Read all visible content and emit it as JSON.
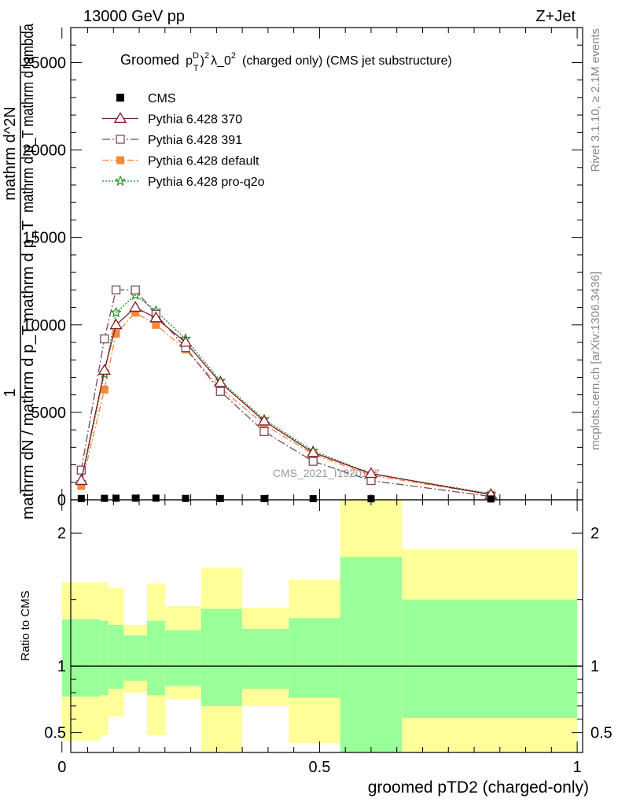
{
  "header": {
    "left": "13000 GeV pp",
    "right": "Z+Jet"
  },
  "side_labels": {
    "rivet": "Rivet 3.1.10, ≥ 2.1M events",
    "mcplots": "mcplots.cern.ch [arXiv:1306.3436]"
  },
  "watermark": "CMS_2021_I1920187",
  "colors": {
    "cms": "#000000",
    "p370": "#7b1a2a",
    "p391": "#7a4a5c",
    "pdefault": "#f5883a",
    "pq2o": "#1a8a1a",
    "band_outer": "#ffff99",
    "band_inner": "#99ff99"
  },
  "chart_data": [
    {
      "type": "line",
      "title": "Groomed (p_T^D)^2 λ_0^2  (charged only) (CMS jet substructure)",
      "title_parts": {
        "prefix": "Groomed",
        "p": "p",
        "sup_D": "D",
        "sub_T": "T",
        "sq": "2",
        "lambda": "λ_0",
        "suffix": "(charged only) (CMS jet substructure)"
      },
      "ylabel_lines": [
        "1",
        "mathrm dN / mathrm d p_T mathrm d p_T",
        "mathrm d^2N",
        "mathrm d p_T mathrm d lambda"
      ],
      "ylim": [
        0,
        27000
      ],
      "yticks": [
        0,
        5000,
        10000,
        15000,
        20000,
        25000
      ],
      "ytick_labels": [
        "0",
        "5000",
        "10000",
        "15000",
        "20000",
        "25000"
      ],
      "x": [
        0.0375,
        0.0825,
        0.105,
        0.1425,
        0.1825,
        0.24,
        0.3075,
        0.3925,
        0.4875,
        0.6,
        0.8325
      ],
      "series": [
        {
          "name": "CMS",
          "values": [
            30,
            40,
            45,
            50,
            50,
            35,
            30,
            25,
            20,
            15,
            5
          ],
          "marker": "square-filled",
          "color_key": "cms",
          "dash": "none"
        },
        {
          "name": "Pythia 6.428 370",
          "values": [
            1100,
            7400,
            10000,
            11000,
            10400,
            9000,
            6700,
            4500,
            2700,
            1500,
            300
          ],
          "marker": "triangle",
          "color_key": "p370",
          "dash": "none"
        },
        {
          "name": "Pythia 6.428 391",
          "values": [
            1700,
            9200,
            12000,
            12000,
            10600,
            8700,
            6200,
            3900,
            2200,
            1100,
            200
          ],
          "marker": "square-open",
          "color_key": "p391",
          "dash": "10,3,2,3"
        },
        {
          "name": "Pythia 6.428 default",
          "values": [
            800,
            6300,
            9500,
            10700,
            10000,
            8600,
            6400,
            4300,
            2600,
            1400,
            300
          ],
          "marker": "square-filled",
          "color_key": "pdefault",
          "dash": "8,3,2,3"
        },
        {
          "name": "Pythia 6.428 pro-q2o",
          "values": [
            1000,
            7200,
            10700,
            11700,
            10800,
            9200,
            6800,
            4600,
            2800,
            1500,
            350
          ],
          "marker": "star",
          "color_key": "pq2o",
          "dash": "2,2"
        }
      ],
      "legend_position": "top-left"
    },
    {
      "type": "area",
      "ylabel": "Ratio to CMS",
      "xlabel": "groomed pTD2 (charged-only)",
      "xlim": [
        0,
        1
      ],
      "ylim": [
        0.35,
        2.25
      ],
      "xticks": [
        0,
        0.5,
        1
      ],
      "xtick_labels": [
        "0",
        "0.5",
        "1"
      ],
      "yticks": [
        0.5,
        1,
        2
      ],
      "ytick_labels": [
        "0.5",
        "1",
        "2"
      ],
      "bins": [
        {
          "lo": 0.0,
          "hi": 0.075,
          "inner": [
            0.77,
            1.35
          ],
          "outer": [
            0.44,
            1.63
          ]
        },
        {
          "lo": 0.075,
          "hi": 0.09,
          "inner": [
            0.78,
            1.34
          ],
          "outer": [
            0.48,
            1.63
          ]
        },
        {
          "lo": 0.09,
          "hi": 0.12,
          "inner": [
            0.83,
            1.31
          ],
          "outer": [
            0.62,
            1.59
          ]
        },
        {
          "lo": 0.12,
          "hi": 0.165,
          "inner": [
            0.89,
            1.23
          ],
          "outer": [
            0.8,
            1.31
          ]
        },
        {
          "lo": 0.165,
          "hi": 0.2,
          "inner": [
            0.78,
            1.34
          ],
          "outer": [
            0.48,
            1.62
          ]
        },
        {
          "lo": 0.2,
          "hi": 0.27,
          "inner": [
            0.85,
            1.27
          ],
          "outer": [
            0.75,
            1.45
          ]
        },
        {
          "lo": 0.27,
          "hi": 0.35,
          "inner": [
            0.7,
            1.43
          ],
          "outer": [
            0.36,
            1.74
          ]
        },
        {
          "lo": 0.35,
          "hi": 0.44,
          "inner": [
            0.83,
            1.28
          ],
          "outer": [
            0.7,
            1.44
          ]
        },
        {
          "lo": 0.44,
          "hi": 0.54,
          "inner": [
            0.76,
            1.36
          ],
          "outer": [
            0.42,
            1.65
          ]
        },
        {
          "lo": 0.54,
          "hi": 0.66,
          "inner": [
            0.35,
            1.82
          ],
          "outer": [
            0.35,
            2.25
          ]
        },
        {
          "lo": 0.66,
          "hi": 1.0,
          "inner": [
            0.61,
            1.5
          ],
          "outer": [
            0.35,
            1.88
          ]
        }
      ]
    }
  ]
}
